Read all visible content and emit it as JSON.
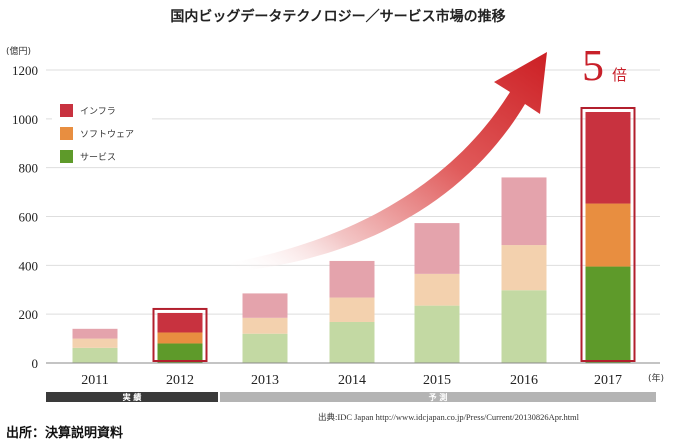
{
  "chart_data": {
    "type": "bar",
    "stacked": true,
    "title": "国内ビッグデータテクノロジー／サービス市場の推移",
    "ylabel": "(億円)",
    "xlabel_unit": "(年)",
    "ylim": [
      0,
      1200
    ],
    "yticks": [
      0,
      200,
      400,
      600,
      800,
      1000,
      1200
    ],
    "categories": [
      "2011",
      "2012",
      "2013",
      "2014",
      "2015",
      "2016",
      "2017"
    ],
    "series": [
      {
        "name": "サービス",
        "values": [
          62,
          80,
          120,
          168,
          235,
          298,
          395
        ]
      },
      {
        "name": "ソフトウェア",
        "values": [
          38,
          45,
          65,
          100,
          130,
          185,
          258
        ]
      },
      {
        "name": "インフラ",
        "values": [
          40,
          80,
          100,
          150,
          208,
          277,
          375
        ]
      }
    ],
    "highlighted": [
      "2012",
      "2017"
    ],
    "actual_label": "実 績",
    "forecast_label": "予 測",
    "growth_number": "5",
    "growth_suffix": "倍",
    "source_note": "出典:IDC Japan http://www.idcjapan.co.jp/Press/Current/20130826Apr.html"
  },
  "colors": {
    "infra": "#c8323f",
    "software": "#e88e40",
    "service": "#5e9a2a",
    "infra_light": "#e4a3ac",
    "software_light": "#f3d1ae",
    "service_light": "#c3d9a3",
    "highlight_frame": "#b21f2d",
    "arrow": "#d02a2a",
    "axis_band_dark": "#3a3a3a",
    "axis_band_light": "#b4b4b4"
  },
  "footer_caption": "出所：決算説明資料"
}
